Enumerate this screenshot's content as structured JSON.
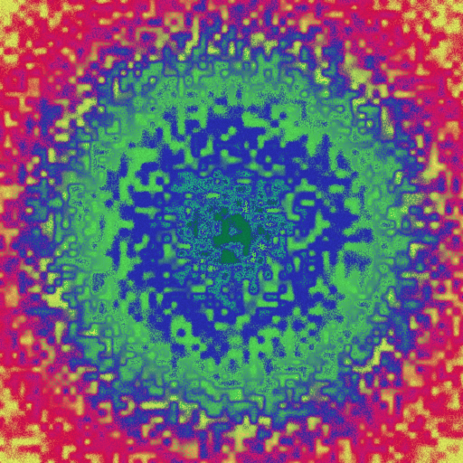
{
  "image": {
    "kind": "abstract noise fractal",
    "colors": {
      "center_core": "#0a7c4a",
      "inner_ring": "#21d07a",
      "mid_blue": "#2a2fb8",
      "mid_green": "#56e05a",
      "outer_magenta": "#d0187a",
      "outer_red": "#e0104a",
      "edge_yellow": "#e6f060"
    }
  }
}
